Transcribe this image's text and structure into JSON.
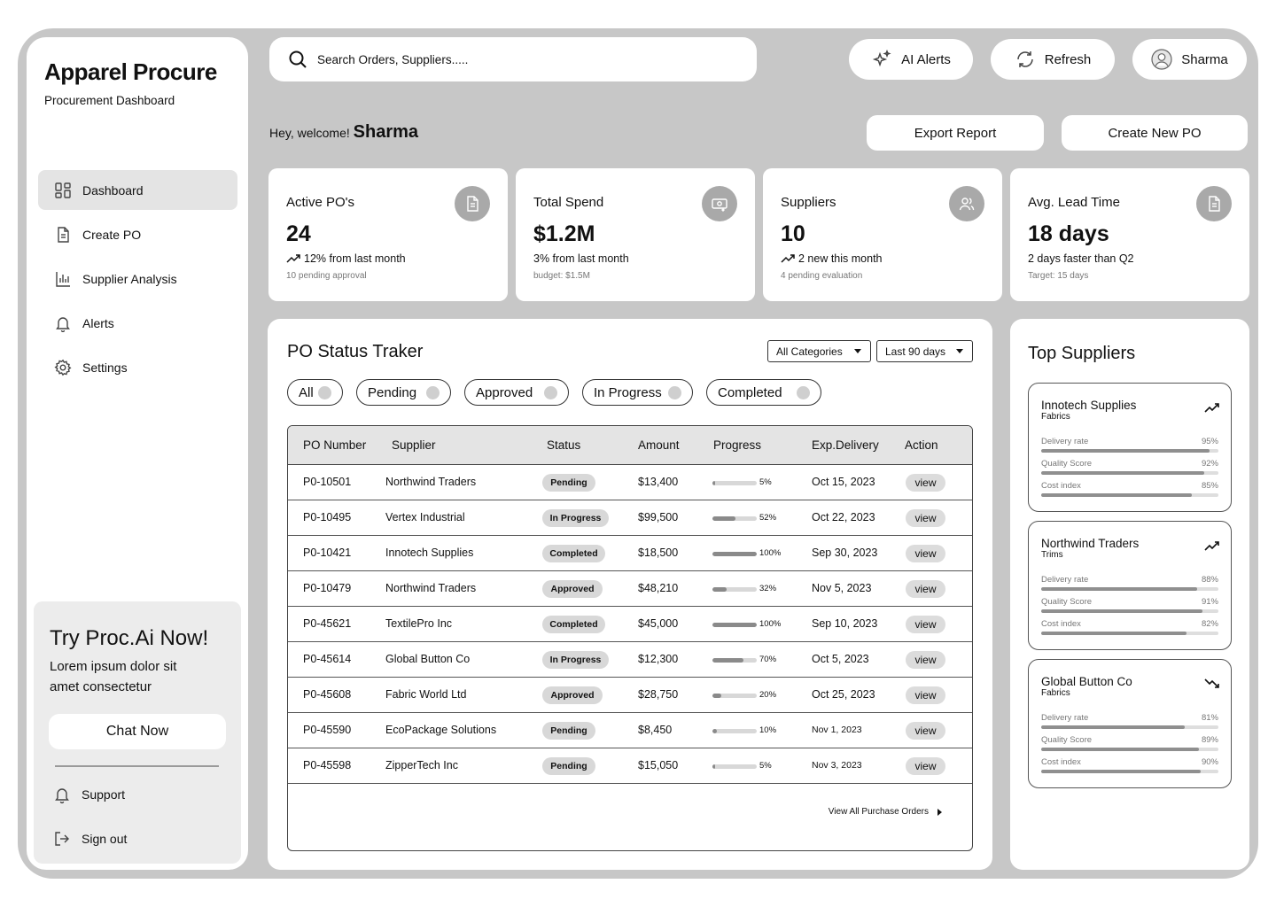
{
  "brand": {
    "name": "Apparel Procure",
    "subtitle": "Procurement Dashboard"
  },
  "nav": [
    {
      "label": "Dashboard",
      "icon": "dashboard-icon",
      "active": true
    },
    {
      "label": "Create PO",
      "icon": "document-icon"
    },
    {
      "label": "Supplier Analysis",
      "icon": "bar-chart-icon"
    },
    {
      "label": "Alerts",
      "icon": "bell-icon"
    },
    {
      "label": "Settings",
      "icon": "gear-icon"
    }
  ],
  "promo": {
    "title": "Try Proc.Ai Now!",
    "text": "Lorem ipsum dolor sit amet consectetur",
    "button": "Chat Now"
  },
  "footer_links": {
    "support": "Support",
    "signout": "Sign out"
  },
  "search": {
    "placeholder": "Search Orders, Suppliers....."
  },
  "topbar": {
    "ai_alerts": "AI Alerts",
    "refresh": "Refresh",
    "user": "Sharma"
  },
  "welcome": {
    "greeting": "Hey, welcome!",
    "name": "Sharma"
  },
  "actions": {
    "export": "Export Report",
    "create": "Create New PO"
  },
  "stats": [
    {
      "label": "Active PO's",
      "value": "24",
      "change": "12% from last month",
      "note": "10 pending approval",
      "trend": true,
      "icon": "document-icon"
    },
    {
      "label": "Total Spend",
      "value": "$1.2M",
      "change": "3% from last month",
      "note": "budget: $1.5M",
      "trend": false,
      "icon": "money-icon"
    },
    {
      "label": "Suppliers",
      "value": "10",
      "change": "2 new this month",
      "note": "4 pending evaluation",
      "trend": true,
      "icon": "users-icon"
    },
    {
      "label": "Avg. Lead Time",
      "value": "18 days",
      "change": "2 days faster than Q2",
      "note": "Target: 15 days",
      "trend": false,
      "icon": "document-icon"
    }
  ],
  "po_status": {
    "title": "PO Status Traker",
    "dropdowns": {
      "category": "All Categories",
      "period": "Last 90 days"
    },
    "filters": [
      "All",
      "Pending",
      "Approved",
      "In Progress",
      "Completed"
    ],
    "columns": [
      "PO Number",
      "Supplier",
      "Status",
      "Amount",
      "Progress",
      "Exp.Delivery",
      "Action"
    ],
    "rows": [
      {
        "po": "P0-10501",
        "supplier": "Northwind Traders",
        "status": "Pending",
        "amount": "$13,400",
        "progress": 5,
        "progress_text": "5%",
        "delivery": "Oct 15, 2023",
        "action": "view"
      },
      {
        "po": "P0-10495",
        "supplier": "Vertex Industrial",
        "status": "In Progress",
        "amount": "$99,500",
        "progress": 52,
        "progress_text": "52%",
        "delivery": "Oct 22, 2023",
        "action": "view"
      },
      {
        "po": "P0-10421",
        "supplier": "Innotech Supplies",
        "status": "Completed",
        "amount": "$18,500",
        "progress": 100,
        "progress_text": "100%",
        "delivery": "Sep 30, 2023",
        "action": "view"
      },
      {
        "po": "P0-10479",
        "supplier": "Northwind Traders",
        "status": "Approved",
        "amount": "$48,210",
        "progress": 32,
        "progress_text": "32%",
        "delivery": "Nov 5, 2023",
        "action": "view"
      },
      {
        "po": "P0-45621",
        "supplier": "TextilePro Inc",
        "status": "Completed",
        "amount": "$45,000",
        "progress": 100,
        "progress_text": "100%",
        "delivery": "Sep 10, 2023",
        "action": "view"
      },
      {
        "po": "P0-45614",
        "supplier": "Global Button Co",
        "status": "In Progress",
        "amount": "$12,300",
        "progress": 70,
        "progress_text": "70%",
        "delivery": "Oct 5, 2023",
        "action": "view"
      },
      {
        "po": "P0-45608",
        "supplier": "Fabric World Ltd",
        "status": "Approved",
        "amount": "$28,750",
        "progress": 20,
        "progress_text": "20%",
        "delivery": "Oct 25, 2023",
        "action": "view"
      },
      {
        "po": "P0-45590",
        "supplier": "EcoPackage Solutions",
        "status": "Pending",
        "amount": "$8,450",
        "progress": 10,
        "progress_text": "10%",
        "delivery": "Nov 1, 2023",
        "action": "view"
      },
      {
        "po": "P0-45598",
        "supplier": "ZipperTech Inc",
        "status": "Pending",
        "amount": "$15,050",
        "progress": 5,
        "progress_text": "5%",
        "delivery": "Nov 3, 2023",
        "action": "view"
      }
    ],
    "view_all": "View All Purchase Orders"
  },
  "top_suppliers": {
    "title": "Top Suppliers",
    "items": [
      {
        "name": "Innotech Supplies",
        "category": "Fabrics",
        "trend": "up",
        "metrics": [
          {
            "label": "Delivery rate",
            "value": "95%",
            "pct": 95
          },
          {
            "label": "Quality Score",
            "value": "92%",
            "pct": 92
          },
          {
            "label": "Cost index",
            "value": "85%",
            "pct": 85
          }
        ]
      },
      {
        "name": "Northwind Traders",
        "category": "Trims",
        "trend": "up",
        "metrics": [
          {
            "label": "Delivery rate",
            "value": "88%",
            "pct": 88
          },
          {
            "label": "Quality Score",
            "value": "91%",
            "pct": 91
          },
          {
            "label": "Cost index",
            "value": "82%",
            "pct": 82
          }
        ]
      },
      {
        "name": "Global Button Co",
        "category": "Fabrics",
        "trend": "down",
        "metrics": [
          {
            "label": "Delivery rate",
            "value": "81%",
            "pct": 81
          },
          {
            "label": "Quality Score",
            "value": "89%",
            "pct": 89
          },
          {
            "label": "Cost index",
            "value": "90%",
            "pct": 90
          }
        ]
      }
    ]
  }
}
